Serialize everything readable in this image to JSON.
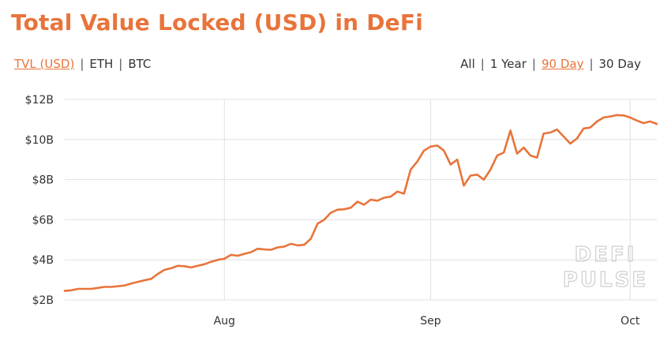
{
  "title": "Total Value Locked (USD) in DeFi",
  "currency_toggles": [
    {
      "label": "TVL (USD)",
      "active": true
    },
    {
      "label": "ETH",
      "active": false
    },
    {
      "label": "BTC",
      "active": false
    }
  ],
  "range_toggles": [
    {
      "label": "All",
      "active": false
    },
    {
      "label": "1 Year",
      "active": false
    },
    {
      "label": "90 Day",
      "active": true
    },
    {
      "label": "30 Day",
      "active": false
    }
  ],
  "separator": "|",
  "watermark": {
    "line1": "DEFI",
    "line2": "PULSE"
  },
  "colors": {
    "accent": "#e8743b",
    "line": "#e8743b",
    "grid": "#e0e0e0",
    "text": "#333333"
  },
  "chart_data": {
    "type": "line",
    "title": "Total Value Locked (USD) in DeFi",
    "series": [
      {
        "x": [
          "2020-07-08",
          "2020-07-09",
          "2020-07-10",
          "2020-07-11",
          "2020-07-12",
          "2020-07-13",
          "2020-07-14",
          "2020-07-15",
          "2020-07-16",
          "2020-07-17",
          "2020-07-18",
          "2020-07-19",
          "2020-07-20",
          "2020-07-21",
          "2020-07-22",
          "2020-07-23",
          "2020-07-24",
          "2020-07-25",
          "2020-07-26",
          "2020-07-27",
          "2020-07-28",
          "2020-07-29",
          "2020-07-30",
          "2020-07-31",
          "2020-08-01",
          "2020-08-02",
          "2020-08-03",
          "2020-08-04",
          "2020-08-05",
          "2020-08-06",
          "2020-08-07",
          "2020-08-08",
          "2020-08-09",
          "2020-08-10",
          "2020-08-11",
          "2020-08-12",
          "2020-08-13",
          "2020-08-14",
          "2020-08-15",
          "2020-08-16",
          "2020-08-17",
          "2020-08-18",
          "2020-08-19",
          "2020-08-20",
          "2020-08-21",
          "2020-08-22",
          "2020-08-23",
          "2020-08-24",
          "2020-08-25",
          "2020-08-26",
          "2020-08-27",
          "2020-08-28",
          "2020-08-29",
          "2020-08-30",
          "2020-08-31",
          "2020-09-01",
          "2020-09-02",
          "2020-09-03",
          "2020-09-04",
          "2020-09-05",
          "2020-09-06",
          "2020-09-07",
          "2020-09-08",
          "2020-09-09",
          "2020-09-10",
          "2020-09-11",
          "2020-09-12",
          "2020-09-13",
          "2020-09-14",
          "2020-09-15",
          "2020-09-16",
          "2020-09-17",
          "2020-09-18",
          "2020-09-19",
          "2020-09-20",
          "2020-09-21",
          "2020-09-22",
          "2020-09-23",
          "2020-09-24",
          "2020-09-25",
          "2020-09-26",
          "2020-09-27",
          "2020-09-28",
          "2020-09-29",
          "2020-09-30",
          "2020-10-01",
          "2020-10-02",
          "2020-10-03",
          "2020-10-04",
          "2020-10-05"
        ],
        "values": [
          2.45,
          2.48,
          2.55,
          2.55,
          2.55,
          2.6,
          2.65,
          2.65,
          2.68,
          2.72,
          2.82,
          2.9,
          2.98,
          3.05,
          3.3,
          3.5,
          3.58,
          3.7,
          3.68,
          3.62,
          3.7,
          3.78,
          3.9,
          4.0,
          4.05,
          4.25,
          4.2,
          4.3,
          4.38,
          4.55,
          4.52,
          4.5,
          4.62,
          4.66,
          4.8,
          4.72,
          4.75,
          5.05,
          5.8,
          6.0,
          6.35,
          6.5,
          6.52,
          6.6,
          6.9,
          6.75,
          7.0,
          6.95,
          7.1,
          7.15,
          7.4,
          7.3,
          8.5,
          8.9,
          9.45,
          9.65,
          9.7,
          9.45,
          8.75,
          9.0,
          7.7,
          8.2,
          8.25,
          8.0,
          8.5,
          9.2,
          9.35,
          10.45,
          9.3,
          9.6,
          9.2,
          9.1,
          10.3,
          10.35,
          10.5,
          10.15,
          9.8,
          10.05,
          10.55,
          10.6,
          10.9,
          11.1,
          11.15,
          11.22,
          11.2,
          11.1,
          10.95,
          10.82,
          10.9,
          10.78
        ]
      }
    ],
    "y_tick_labels": [
      "$2B",
      "$4B",
      "$6B",
      "$8B",
      "$10B",
      "$12B"
    ],
    "y_ticks": [
      2,
      4,
      6,
      8,
      10,
      12
    ],
    "ylim": [
      2,
      12
    ],
    "x_tick_labels": [
      "Aug",
      "Sep",
      "Oct"
    ],
    "x_ticks": [
      "2020-08-01",
      "2020-09-01",
      "2020-10-01"
    ],
    "xlim": [
      "2020-07-08",
      "2020-10-05"
    ],
    "grid": true,
    "xlabel": "",
    "ylabel": ""
  }
}
